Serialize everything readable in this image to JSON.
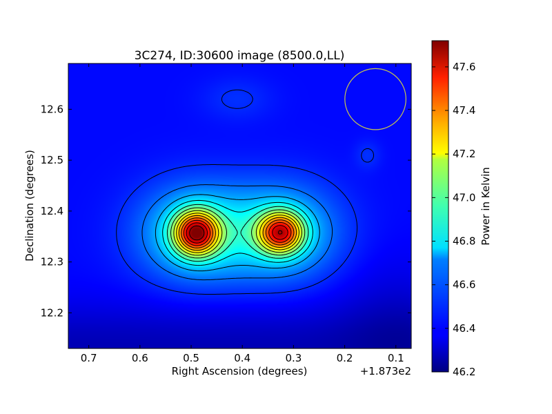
{
  "chart_data": {
    "type": "heatmap",
    "title": "3C274, ID:30600 image (8500.0,LL)",
    "xlabel": "Right Ascension (degrees)",
    "ylabel": "Declination (degrees)",
    "x_offset_label": "+1.873e2",
    "xlim": [
      0.74,
      0.07
    ],
    "ylim": [
      12.13,
      12.69
    ],
    "x_ticks": [
      0.7,
      0.6,
      0.5,
      0.4,
      0.3,
      0.2,
      0.1
    ],
    "x_tick_labels": [
      "0.7",
      "0.6",
      "0.5",
      "0.4",
      "0.3",
      "0.2",
      "0.1"
    ],
    "y_ticks": [
      12.2,
      12.3,
      12.4,
      12.5,
      12.6
    ],
    "y_tick_labels": [
      "12.2",
      "12.3",
      "12.4",
      "12.5",
      "12.6"
    ],
    "colormap": "jet",
    "colorbar": {
      "label": "Power in Kelvin",
      "range": [
        46.2,
        47.72
      ],
      "ticks": [
        46.2,
        46.4,
        46.6,
        46.8,
        47.0,
        47.2,
        47.4,
        47.6
      ],
      "tick_labels": [
        "46.2",
        "46.4",
        "46.6",
        "46.8",
        "47.0",
        "47.2",
        "47.4",
        "47.6"
      ]
    },
    "background_level": 46.4,
    "sources": [
      {
        "ra": 0.49,
        "dec": 12.357,
        "peak": 47.72
      },
      {
        "ra": 0.325,
        "dec": 12.358,
        "peak": 47.62
      }
    ],
    "beam": {
      "ra": 0.14,
      "dec": 12.62,
      "radius_deg": 0.06,
      "color": "#c8c84a"
    },
    "contour_levels": [
      46.45,
      46.55,
      46.65,
      46.75,
      46.85,
      46.95,
      47.05,
      47.15,
      47.25,
      47.35,
      47.45,
      47.55,
      47.65
    ]
  }
}
